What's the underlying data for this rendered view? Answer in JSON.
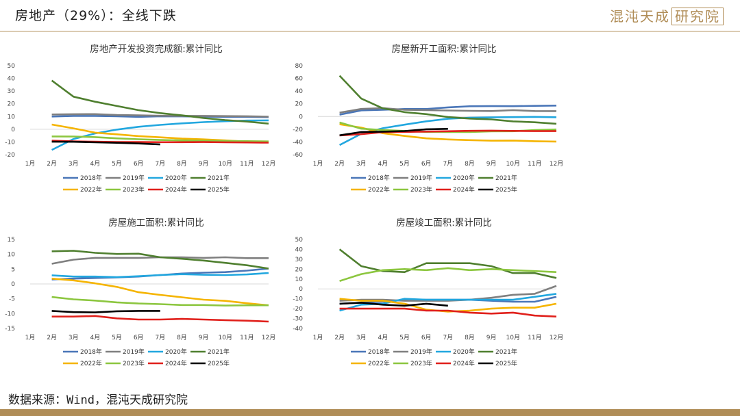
{
  "header": {
    "title": "房地产（29%）：全线下跌",
    "logo_text": "混沌天成",
    "logo_box": "研究院"
  },
  "footer": {
    "source": "数据来源：Wind，混沌天成研究院"
  },
  "colors": {
    "2018年": "#4a76b8",
    "2019年": "#7f7f7f",
    "2020年": "#22a7df",
    "2021年": "#4f7f2f",
    "2022年": "#f5b400",
    "2023年": "#8cc63f",
    "2024年": "#e0201b",
    "2025年": "#000000"
  },
  "chart_data": [
    {
      "type": "line",
      "title": "房地产开发投资完成额:累计同比",
      "categories": [
        "1月",
        "2月",
        "3月",
        "4月",
        "5月",
        "6月",
        "7月",
        "8月",
        "9月",
        "10月",
        "11月",
        "12月"
      ],
      "yticks": [
        50,
        40,
        30,
        20,
        10,
        0,
        -10,
        -20
      ],
      "ylim": [
        -20,
        50
      ],
      "series": [
        {
          "name": "2018年",
          "values": [
            null,
            10,
            10.5,
            10.5,
            10.2,
            9.7,
            10.2,
            10.1,
            9.9,
            9.7,
            9.7,
            9.5
          ]
        },
        {
          "name": "2019年",
          "values": [
            null,
            11.6,
            11.8,
            11.9,
            11.2,
            10.9,
            10.6,
            10.5,
            10.5,
            10.3,
            10.2,
            9.9
          ]
        },
        {
          "name": "2020年",
          "values": [
            null,
            -16.3,
            -7.7,
            -3.3,
            -0.3,
            1.9,
            3.4,
            4.6,
            5.6,
            6.3,
            6.8,
            7
          ]
        },
        {
          "name": "2021年",
          "values": [
            null,
            38.3,
            25.6,
            21.6,
            18.3,
            15,
            12.7,
            10.9,
            8.8,
            7.2,
            6,
            4.4
          ]
        },
        {
          "name": "2022年",
          "values": [
            null,
            3.7,
            0.7,
            -2.7,
            -4,
            -5.4,
            -6.4,
            -7.4,
            -8,
            -8.8,
            -9.8,
            -10
          ]
        },
        {
          "name": "2023年",
          "values": [
            null,
            -5.7,
            -5.8,
            -6.2,
            -7.2,
            -7.9,
            -8.5,
            -8.8,
            -9.1,
            -9.3,
            -9.4,
            -9.6
          ]
        },
        {
          "name": "2024年",
          "values": [
            null,
            -9,
            -9.5,
            -9.8,
            -10.1,
            -10.1,
            -10.2,
            -10.2,
            -10.1,
            -10.3,
            -10.4,
            -10.6
          ]
        },
        {
          "name": "2025年",
          "values": [
            null,
            -9.8,
            -9.9,
            -10.3,
            -10.7,
            -11.2,
            -12,
            null,
            null,
            null,
            null,
            null
          ]
        }
      ]
    },
    {
      "type": "line",
      "title": "房屋新开工面积:累计同比",
      "categories": [
        "1月",
        "2月",
        "3月",
        "4月",
        "5月",
        "6月",
        "7月",
        "8月",
        "9月",
        "10月",
        "11月",
        "12月"
      ],
      "yticks": [
        80,
        60,
        40,
        20,
        0,
        -20,
        -40,
        -60
      ],
      "ylim": [
        -60,
        80
      ],
      "series": [
        {
          "name": "2018年",
          "values": [
            null,
            2.9,
            9.7,
            10.5,
            11.8,
            11.8,
            14.4,
            16.1,
            16.4,
            16.3,
            16.8,
            17.2
          ]
        },
        {
          "name": "2019年",
          "values": [
            null,
            6,
            11.9,
            13.1,
            10.5,
            10.1,
            9.5,
            8.9,
            8.6,
            10,
            8.6,
            8.5
          ]
        },
        {
          "name": "2020年",
          "values": [
            null,
            -44.9,
            -27.2,
            -18.4,
            -12.8,
            -7.6,
            -3.6,
            -1.9,
            -1.4,
            -1,
            -0.5,
            -1.2
          ]
        },
        {
          "name": "2021年",
          "values": [
            null,
            64.3,
            28.2,
            12.8,
            6.9,
            3.8,
            -0.9,
            -3.2,
            -4.5,
            -7.7,
            -9.1,
            -11.4
          ]
        },
        {
          "name": "2022年",
          "values": [
            null,
            -12.2,
            -17.5,
            -26.3,
            -30.6,
            -34.4,
            -36.1,
            -37.2,
            -38,
            -37.8,
            -38.9,
            -39.4
          ]
        },
        {
          "name": "2023年",
          "values": [
            null,
            -9.4,
            -19.2,
            -21.2,
            -22.6,
            -24.3,
            -24.5,
            -24.4,
            -23.4,
            -23.2,
            -21.2,
            -20.4
          ]
        },
        {
          "name": "2024年",
          "values": [
            null,
            -29.7,
            -27.8,
            -24.6,
            -24.2,
            -23.7,
            -23.2,
            -22.5,
            -22.2,
            -22.6,
            -23,
            -23
          ]
        },
        {
          "name": "2025年",
          "values": [
            null,
            -29.6,
            -24.4,
            -23.8,
            -22.8,
            -20,
            -19.4,
            null,
            null,
            null,
            null,
            null
          ]
        }
      ]
    },
    {
      "type": "line",
      "title": "房屋施工面积:累计同比",
      "categories": [
        "1月",
        "2月",
        "3月",
        "4月",
        "5月",
        "6月",
        "7月",
        "8月",
        "9月",
        "10月",
        "11月",
        "12月"
      ],
      "yticks": [
        15,
        10,
        5,
        0,
        -5,
        -10,
        -15
      ],
      "ylim": [
        -15,
        15
      ],
      "series": [
        {
          "name": "2018年",
          "values": [
            null,
            1.5,
            1.8,
            2,
            2.2,
            2.5,
            3,
            3.5,
            3.8,
            4,
            4.5,
            5.2
          ]
        },
        {
          "name": "2019年",
          "values": [
            null,
            6.8,
            8.2,
            8.8,
            8.8,
            8.8,
            9,
            9,
            8.8,
            9,
            8.7,
            8.7
          ]
        },
        {
          "name": "2020年",
          "values": [
            null,
            2.9,
            2.5,
            2.5,
            2.3,
            2.6,
            3,
            3.3,
            3.1,
            3,
            3.2,
            3.7
          ]
        },
        {
          "name": "2021年",
          "values": [
            null,
            11,
            11.2,
            10.5,
            10.1,
            10.2,
            9,
            8.5,
            7.9,
            7.1,
            6.3,
            5.2
          ]
        },
        {
          "name": "2022年",
          "values": [
            null,
            1.8,
            1.2,
            0.2,
            -1,
            -2.8,
            -3.7,
            -4.5,
            -5.3,
            -5.7,
            -6.5,
            -7.2
          ]
        },
        {
          "name": "2023年",
          "values": [
            null,
            -4.4,
            -5.2,
            -5.6,
            -6.2,
            -6.6,
            -6.8,
            -7.1,
            -7.1,
            -7.3,
            -7.2,
            -7.2
          ]
        },
        {
          "name": "2024年",
          "values": [
            null,
            -11,
            -11,
            -10.8,
            -11.6,
            -12,
            -12,
            -11.8,
            -12,
            -12.2,
            -12.4,
            -12.7
          ]
        },
        {
          "name": "2025年",
          "values": [
            null,
            -9.1,
            -9.5,
            -9.6,
            -9.2,
            -9.1,
            -9.1,
            null,
            null,
            null,
            null,
            null
          ]
        }
      ]
    },
    {
      "type": "line",
      "title": "房屋竣工面积:累计同比",
      "categories": [
        "1月",
        "2月",
        "3月",
        "4月",
        "5月",
        "6月",
        "7月",
        "8月",
        "9月",
        "10月",
        "11月",
        "12月"
      ],
      "yticks": [
        50,
        40,
        30,
        20,
        10,
        0,
        -10,
        -20,
        -30,
        -40
      ],
      "ylim": [
        -40,
        50
      ],
      "series": [
        {
          "name": "2018年",
          "values": [
            null,
            -15,
            -14,
            -13,
            -11,
            -11,
            -11,
            -11,
            -12,
            -13,
            -13,
            -8
          ]
        },
        {
          "name": "2019年",
          "values": [
            null,
            -12,
            -11,
            -11,
            -12,
            -12,
            -12,
            -11,
            -9,
            -6,
            -5,
            3
          ]
        },
        {
          "name": "2020年",
          "values": [
            null,
            -22,
            -16,
            -15,
            -10,
            -11,
            -11,
            -11,
            -11,
            -11,
            -8,
            -5
          ]
        },
        {
          "name": "2021年",
          "values": [
            null,
            40,
            23,
            18,
            17,
            26,
            26,
            26,
            23,
            16,
            16,
            11
          ]
        },
        {
          "name": "2022年",
          "values": [
            null,
            -10,
            -12,
            -12,
            -15,
            -21,
            -23,
            -22,
            -20,
            -19,
            -19,
            -15
          ]
        },
        {
          "name": "2023年",
          "values": [
            null,
            8,
            15,
            19,
            20,
            19,
            21,
            19,
            20,
            19,
            18,
            17
          ]
        },
        {
          "name": "2024年",
          "values": [
            null,
            -20,
            -20,
            -20,
            -20,
            -22,
            -22,
            -24,
            -25,
            -24,
            -27,
            -28
          ]
        },
        {
          "name": "2025年",
          "values": [
            null,
            -15,
            -14,
            -16,
            -17,
            -15,
            -17,
            null,
            null,
            null,
            null,
            null
          ]
        }
      ]
    }
  ]
}
